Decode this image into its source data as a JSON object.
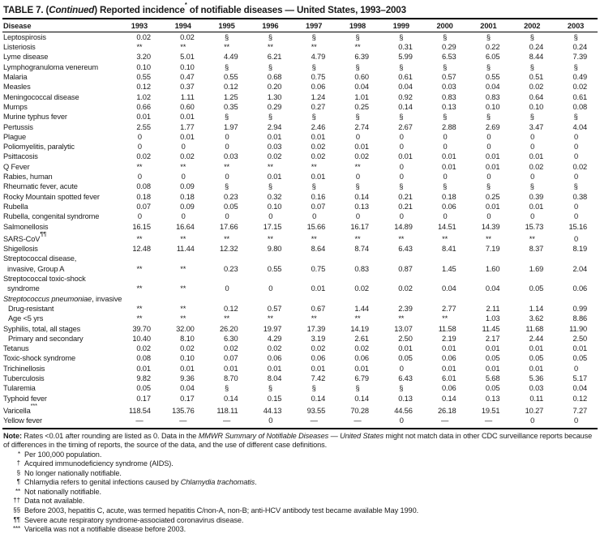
{
  "title": {
    "bold1": "TABLE 7. (",
    "italic": "Continued",
    "bold2": ") Reported incidence",
    "sup": "*",
    "bold3": " of notifiable diseases — United States, 1993–2003"
  },
  "table": {
    "disease_header": "Disease",
    "years": [
      "1993",
      "1994",
      "1995",
      "1996",
      "1997",
      "1998",
      "1999",
      "2000",
      "2001",
      "2002",
      "2003"
    ],
    "rows": [
      {
        "label": "Leptospirosis",
        "values": [
          "0.02",
          "0.02",
          "§",
          "§",
          "§",
          "§",
          "§",
          "§",
          "§",
          "§",
          "§"
        ]
      },
      {
        "label": "Listeriosis",
        "values": [
          "**",
          "**",
          "**",
          "**",
          "**",
          "**",
          "0.31",
          "0.29",
          "0.22",
          "0.24",
          "0.24"
        ]
      },
      {
        "label": "Lyme disease",
        "values": [
          "3.20",
          "5.01",
          "4.49",
          "6.21",
          "4.79",
          "6.39",
          "5.99",
          "6.53",
          "6.05",
          "8.44",
          "7.39"
        ]
      },
      {
        "label": "Lymphogranuloma venereum",
        "values": [
          "0.10",
          "0.10",
          "§",
          "§",
          "§",
          "§",
          "§",
          "§",
          "§",
          "§",
          "§"
        ]
      },
      {
        "label": "Malaria",
        "values": [
          "0.55",
          "0.47",
          "0.55",
          "0.68",
          "0.75",
          "0.60",
          "0.61",
          "0.57",
          "0.55",
          "0.51",
          "0.49"
        ]
      },
      {
        "label": "Measles",
        "values": [
          "0.12",
          "0.37",
          "0.12",
          "0.20",
          "0.06",
          "0.04",
          "0.04",
          "0.03",
          "0.04",
          "0.02",
          "0.02"
        ]
      },
      {
        "label": "Meningococcal disease",
        "values": [
          "1.02",
          "1.11",
          "1.25",
          "1.30",
          "1.24",
          "1.01",
          "0.92",
          "0.83",
          "0.83",
          "0.64",
          "0.61"
        ]
      },
      {
        "label": "Mumps",
        "values": [
          "0.66",
          "0.60",
          "0.35",
          "0.29",
          "0.27",
          "0.25",
          "0.14",
          "0.13",
          "0.10",
          "0.10",
          "0.08"
        ]
      },
      {
        "label": "Murine typhus fever",
        "values": [
          "0.01",
          "0.01",
          "§",
          "§",
          "§",
          "§",
          "§",
          "§",
          "§",
          "§",
          "§"
        ]
      },
      {
        "label": "Pertussis",
        "values": [
          "2.55",
          "1.77",
          "1.97",
          "2.94",
          "2.46",
          "2.74",
          "2.67",
          "2.88",
          "2.69",
          "3.47",
          "4.04"
        ]
      },
      {
        "label": "Plague",
        "values": [
          "0",
          "0.01",
          "0",
          "0.01",
          "0.01",
          "0",
          "0",
          "0",
          "0",
          "0",
          "0"
        ]
      },
      {
        "label": "Poliomyelitis, paralytic",
        "values": [
          "0",
          "0",
          "0",
          "0.03",
          "0.02",
          "0.01",
          "0",
          "0",
          "0",
          "0",
          "0"
        ]
      },
      {
        "label": "Psittacosis",
        "values": [
          "0.02",
          "0.02",
          "0.03",
          "0.02",
          "0.02",
          "0.02",
          "0.01",
          "0.01",
          "0.01",
          "0.01",
          "0"
        ]
      },
      {
        "label": "Q Fever",
        "values": [
          "**",
          "**",
          "**",
          "**",
          "**",
          "**",
          "0",
          "0.01",
          "0.01",
          "0.02",
          "0.02"
        ]
      },
      {
        "label": "Rabies, human",
        "values": [
          "0",
          "0",
          "0",
          "0.01",
          "0.01",
          "0",
          "0",
          "0",
          "0",
          "0",
          "0"
        ]
      },
      {
        "label": "Rheumatic fever, acute",
        "values": [
          "0.08",
          "0.09",
          "§",
          "§",
          "§",
          "§",
          "§",
          "§",
          "§",
          "§",
          "§"
        ]
      },
      {
        "label": "Rocky Mountain spotted fever",
        "values": [
          "0.18",
          "0.18",
          "0.23",
          "0.32",
          "0.16",
          "0.14",
          "0.21",
          "0.18",
          "0.25",
          "0.39",
          "0.38"
        ]
      },
      {
        "label": "Rubella",
        "values": [
          "0.07",
          "0.09",
          "0.05",
          "0.10",
          "0.07",
          "0.13",
          "0.21",
          "0.06",
          "0.01",
          "0.01",
          "0"
        ]
      },
      {
        "label": "Rubella, congenital syndrome",
        "values": [
          "0",
          "0",
          "0",
          "0",
          "0",
          "0",
          "0",
          "0",
          "0",
          "0",
          "0"
        ]
      },
      {
        "label": "Salmonellosis",
        "values": [
          "16.15",
          "16.64",
          "17.66",
          "17.15",
          "15.66",
          "16.17",
          "14.89",
          "14.51",
          "14.39",
          "15.73",
          "15.16"
        ]
      },
      {
        "label": "SARS-CoV",
        "sup": "¶¶",
        "values": [
          "**",
          "**",
          "**",
          "**",
          "**",
          "**",
          "**",
          "**",
          "**",
          "**",
          "0"
        ]
      },
      {
        "label": "Shigellosis",
        "values": [
          "12.48",
          "11.44",
          "12.32",
          "9.80",
          "8.64",
          "8.74",
          "6.43",
          "8.41",
          "7.19",
          "8.37",
          "8.19"
        ]
      },
      {
        "label": "Streptococcal disease,",
        "line2": "invasive, Group A",
        "values": [
          "**",
          "**",
          "0.23",
          "0.55",
          "0.75",
          "0.83",
          "0.87",
          "1.45",
          "1.60",
          "1.69",
          "2.04"
        ]
      },
      {
        "label": "Streptococcal toxic-shock",
        "line2": "syndrome",
        "values": [
          "**",
          "**",
          "0",
          "0",
          "0.01",
          "0.02",
          "0.02",
          "0.04",
          "0.04",
          "0.05",
          "0.06"
        ]
      },
      {
        "label_em": "Streptococcus pneumoniae",
        "label_rest": ", invasive",
        "group": true,
        "values": []
      },
      {
        "label": "Drug-resistant",
        "indent": true,
        "values": [
          "**",
          "**",
          "0.12",
          "0.57",
          "0.67",
          "1.44",
          "2.39",
          "2.77",
          "2.11",
          "1.14",
          "0.99"
        ]
      },
      {
        "label": "Age <5 yrs",
        "indent": true,
        "values": [
          "**",
          "**",
          "**",
          "**",
          "**",
          "**",
          "**",
          "**",
          "1.03",
          "3.62",
          "8.86"
        ]
      },
      {
        "label": "Syphilis, total, all stages",
        "values": [
          "39.70",
          "32.00",
          "26.20",
          "19.97",
          "17.39",
          "14.19",
          "13.07",
          "11.58",
          "11.45",
          "11.68",
          "11.90"
        ]
      },
      {
        "label": "Primary and secondary",
        "indent": true,
        "values": [
          "10.40",
          "8.10",
          "6.30",
          "4.29",
          "3.19",
          "2.61",
          "2.50",
          "2.19",
          "2.17",
          "2.44",
          "2.50"
        ]
      },
      {
        "label": "Tetanus",
        "values": [
          "0.02",
          "0.02",
          "0.02",
          "0.02",
          "0.02",
          "0.02",
          "0.01",
          "0.01",
          "0.01",
          "0.01",
          "0.01"
        ]
      },
      {
        "label": "Toxic-shock syndrome",
        "values": [
          "0.08",
          "0.10",
          "0.07",
          "0.06",
          "0.06",
          "0.06",
          "0.05",
          "0.06",
          "0.05",
          "0.05",
          "0.05"
        ]
      },
      {
        "label": "Trichinellosis",
        "values": [
          "0.01",
          "0.01",
          "0.01",
          "0.01",
          "0.01",
          "0.01",
          "0",
          "0.01",
          "0.01",
          "0.01",
          "0"
        ]
      },
      {
        "label": "Tuberculosis",
        "values": [
          "9.82",
          "9.36",
          "8.70",
          "8.04",
          "7.42",
          "6.79",
          "6.43",
          "6.01",
          "5.68",
          "5.36",
          "5.17"
        ]
      },
      {
        "label": "Tularemia",
        "values": [
          "0.05",
          "0.04",
          "§",
          "§",
          "§",
          "§",
          "§",
          "0.06",
          "0.05",
          "0.03",
          "0.04"
        ]
      },
      {
        "label": "Typhoid fever",
        "values": [
          "0.17",
          "0.17",
          "0.14",
          "0.15",
          "0.14",
          "0.14",
          "0.13",
          "0.14",
          "0.13",
          "0.11",
          "0.12"
        ]
      },
      {
        "label": "Varicella",
        "sup": "***",
        "values": [
          "118.54",
          "135.76",
          "118.11",
          "44.13",
          "93.55",
          "70.28",
          "44.56",
          "26.18",
          "19.51",
          "10.27",
          "7.27"
        ]
      },
      {
        "label": "Yellow fever",
        "values": [
          "—",
          "—",
          "—",
          "0",
          "—",
          "—",
          "0",
          "—",
          "—",
          "0",
          "0"
        ]
      }
    ]
  },
  "note": {
    "label": "Note:",
    "text1": " Rates <0.01 after rounding are listed as 0. Data in the ",
    "italic": "MMWR Summary of Notifiable Diseases — United States",
    "text2": " might not match data in other CDC surveillance reports because of differences in the timing of reports, the source of the data, and the use of different case definitions."
  },
  "footnotes": [
    {
      "sym": "*",
      "text": "Per 100,000 population."
    },
    {
      "sym": "†",
      "text": "Acquired immunodeficiency syndrome (AIDS)."
    },
    {
      "sym": "§",
      "text": "No longer nationally notifiable."
    },
    {
      "sym": "¶",
      "pre": "Chlamydia refers to genital infections caused by ",
      "em": "Chlamydia trachomatis",
      "post": "."
    },
    {
      "sym": "**",
      "text": "Not nationally notifiable."
    },
    {
      "sym": "††",
      "text": "Data not available."
    },
    {
      "sym": "§§",
      "text": "Before 2003, hepatitis C, acute, was termed hepatitis C/non-A, non-B; anti-HCV antibody test became available May 1990."
    },
    {
      "sym": "¶¶",
      "text": "Severe acute respiratory syndrome-associated coronavirus disease."
    },
    {
      "sym": "***",
      "text": "Varicella was not a notifiable disease before 2003."
    }
  ]
}
